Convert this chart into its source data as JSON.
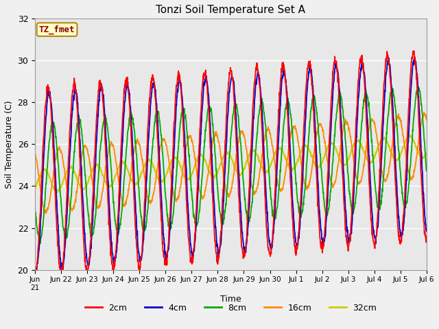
{
  "title": "Tonzi Soil Temperature Set A",
  "xlabel": "Time",
  "ylabel": "Soil Temperature (C)",
  "ylim": [
    20,
    32
  ],
  "yticks": [
    20,
    22,
    24,
    26,
    28,
    30,
    32
  ],
  "bg_color": "#e8e8e8",
  "fig_color": "#f0f0f0",
  "annotation_text": "TZ_fmet",
  "annotation_color": "#8b0000",
  "annotation_bg": "#ffffcc",
  "annotation_border": "#b8860b",
  "line_colors": [
    "#ff0000",
    "#0000cc",
    "#00aa00",
    "#ff8800",
    "#cccc00"
  ],
  "line_labels": [
    "2cm",
    "4cm",
    "8cm",
    "16cm",
    "32cm"
  ],
  "n_days": 15,
  "points_per_day": 96,
  "base_temp": 24.2,
  "trend": 0.115,
  "amplitudes": [
    4.5,
    4.2,
    2.8,
    1.5,
    0.55
  ],
  "phase_lags_days": [
    0.0,
    0.04,
    0.18,
    0.42,
    0.85
  ],
  "trough_base": 21.8,
  "trough_trend": 0.0
}
